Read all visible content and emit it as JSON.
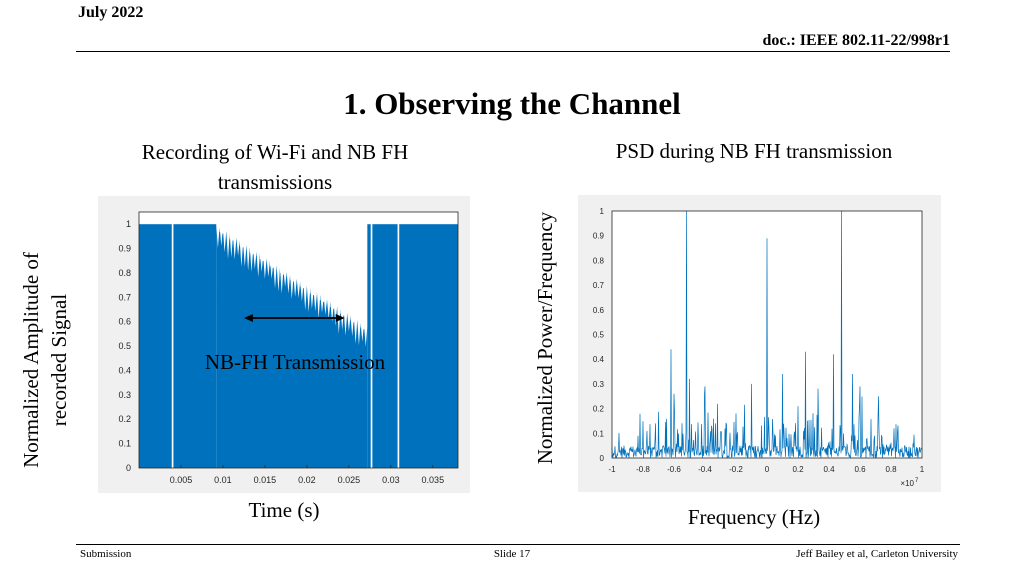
{
  "header": {
    "date": "July 2022",
    "doc": "doc.: IEEE 802.11-22/998r1"
  },
  "title": "1. Observing the Channel",
  "left_panel": {
    "subtitle": "Recording of Wi-Fi and NB FH transmissions",
    "ylabel": "Normalized Amplitude of recorded Signal",
    "xlabel": "Time (s)",
    "annotation": "NB-FH Transmission"
  },
  "right_panel": {
    "subtitle": "PSD during NB FH transmission",
    "ylabel": "Normalized Power/Frequency",
    "xlabel": "Frequency (Hz)"
  },
  "footer": {
    "left": "Submission",
    "center": "Slide 17",
    "right": "Jeff Bailey et al, Carleton University"
  },
  "colors": {
    "signal": "#0072bd",
    "figure_bg": "#f0f0f0"
  },
  "chart_data": [
    {
      "type": "area",
      "xlim": [
        0,
        0.038
      ],
      "ylim": [
        0,
        1.05
      ],
      "x_ticks": [
        "0.005",
        "0.01",
        "0.015",
        "0.02",
        "0.025",
        "0.03",
        "0.035"
      ],
      "x_tick_values": [
        0.005,
        0.01,
        0.015,
        0.02,
        0.025,
        0.03,
        0.035
      ],
      "y_ticks": [
        "0",
        "0.1",
        "0.2",
        "0.3",
        "0.4",
        "0.5",
        "0.6",
        "0.7",
        "0.8",
        "0.9",
        "1"
      ],
      "y_tick_values": [
        0,
        0.1,
        0.2,
        0.3,
        0.4,
        0.5,
        0.6,
        0.7,
        0.8,
        0.9,
        1
      ],
      "wifi_segments": [
        [
          0,
          0.0039
        ],
        [
          0.0041,
          0.0092
        ],
        [
          0.0272,
          0.0276
        ],
        [
          0.0278,
          0.0308
        ],
        [
          0.031,
          0.038
        ]
      ],
      "nbfh_envelope": {
        "x": [
          0.0092,
          0.0272
        ],
        "y": [
          1.0,
          0.58
        ]
      },
      "nbfh_arrow": {
        "x": [
          0.0125,
          0.0245
        ],
        "y": 0.63
      }
    },
    {
      "type": "line",
      "xlim": [
        -1,
        1
      ],
      "ylim": [
        0,
        1
      ],
      "x_ticks": [
        "-1",
        "-0.8",
        "-0.6",
        "-0.4",
        "-0.2",
        "0",
        "0.2",
        "0.4",
        "0.6",
        "0.8",
        "1"
      ],
      "x_tick_values": [
        -1,
        -0.8,
        -0.6,
        -0.4,
        -0.2,
        0,
        0.2,
        0.4,
        0.6,
        0.8,
        1
      ],
      "x_exponent": "10",
      "x_exponent_power": "7",
      "y_ticks": [
        "0",
        "0.1",
        "0.2",
        "0.3",
        "0.4",
        "0.5",
        "0.6",
        "0.7",
        "0.8",
        "0.9",
        "1"
      ],
      "y_tick_values": [
        0,
        0.1,
        0.2,
        0.3,
        0.4,
        0.5,
        0.6,
        0.7,
        0.8,
        0.9,
        1
      ],
      "peaks": [
        {
          "x": -0.72,
          "y": 0.14
        },
        {
          "x": -0.62,
          "y": 0.44
        },
        {
          "x": -0.6,
          "y": 0.26
        },
        {
          "x": -0.5,
          "y": 0.34
        },
        {
          "x": -0.4,
          "y": 0.29
        },
        {
          "x": -0.32,
          "y": 0.22
        },
        {
          "x": -0.1,
          "y": 0.3
        },
        {
          "x": 0.0,
          "y": 0.89
        },
        {
          "x": 0.1,
          "y": 0.34
        },
        {
          "x": 0.25,
          "y": 0.43
        },
        {
          "x": 0.33,
          "y": 0.28
        },
        {
          "x": 0.43,
          "y": 0.42
        },
        {
          "x": 0.48,
          "y": 1.0
        },
        {
          "x": 0.6,
          "y": 0.29
        },
        {
          "x": 0.72,
          "y": 0.25
        },
        {
          "x": 0.82,
          "y": 0.12
        },
        {
          "x": -0.5,
          "y": 0.32
        },
        {
          "x": -0.2,
          "y": 0.18
        },
        {
          "x": 0.2,
          "y": 0.21
        },
        {
          "x": 0.55,
          "y": 0.34
        },
        {
          "x": -0.52,
          "y": 1.0
        }
      ]
    }
  ]
}
